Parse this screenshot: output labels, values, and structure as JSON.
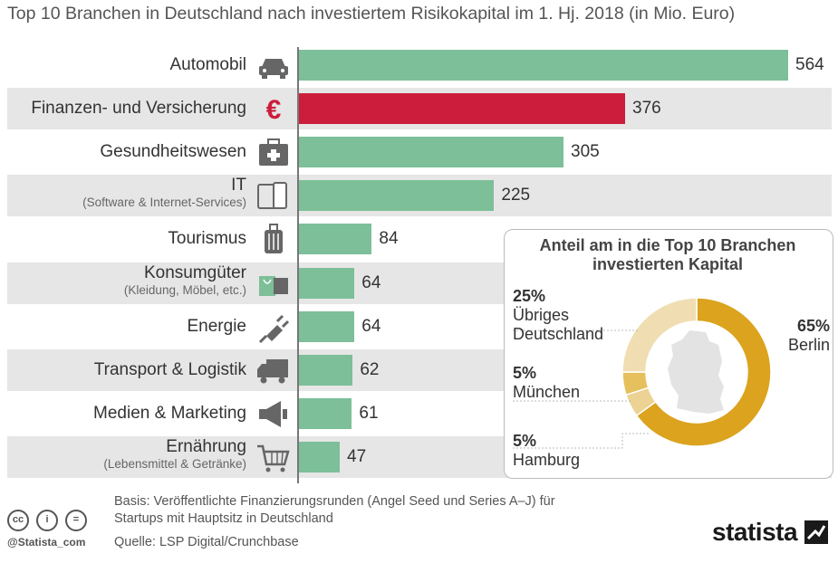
{
  "title": "Top 10 Branchen in Deutschland nach investiertem Risikokapital im 1. Hj. 2018 (in Mio. Euro)",
  "colors": {
    "bar": "#7dbf98",
    "highlight": "#cc1e3c",
    "donut_berlin": "#dba31e",
    "donut_muenchen": "#e6c05c",
    "donut_hamburg": "#ecd293",
    "donut_rest": "#f0deb2"
  },
  "chart_data": [
    {
      "type": "bar",
      "orientation": "horizontal",
      "categories": [
        "Automobil",
        "Finanzen- und Versicherung",
        "Gesundheitswesen",
        "IT",
        "Tourismus",
        "Konsumgüter",
        "Energie",
        "Transport & Logistik",
        "Medien & Marketing",
        "Ernährung"
      ],
      "subcategories": [
        "",
        "",
        "",
        "(Software & Internet-Services)",
        "",
        "(Kleidung, Möbel, etc.)",
        "",
        "",
        "",
        "(Lebensmittel & Getränke)"
      ],
      "icons": [
        "car-icon",
        "euro-icon",
        "first-aid-kit-icon",
        "devices-icon",
        "suitcase-icon",
        "shopping-bag-icon",
        "plug-icon",
        "truck-icon",
        "megaphone-icon",
        "shopping-cart-icon"
      ],
      "values": [
        564,
        376,
        305,
        225,
        84,
        64,
        64,
        62,
        61,
        47
      ],
      "highlight_index": 1,
      "xlim": [
        0,
        564
      ]
    },
    {
      "type": "pie",
      "style": "donut",
      "title": "Anteil am in die Top 10 Branchen investierten Kapital",
      "slices": [
        {
          "label": "Berlin",
          "pct_label": "65%",
          "value": 65
        },
        {
          "label": "Hamburg",
          "pct_label": "5%",
          "value": 5
        },
        {
          "label": "München",
          "pct_label": "5%",
          "value": 5
        },
        {
          "label": "Übriges Deutschland",
          "pct_label": "25%",
          "value": 25
        }
      ],
      "center_icon": "germany-map-icon"
    }
  ],
  "footer": {
    "basis_line1": "Basis: Veröffentlichte Finanzierungsrunden (Angel Seed und Series A–J) für",
    "basis_line2": "Startups mit Hauptsitz in Deutschland",
    "source": "Quelle: LSP Digital/Crunchbase",
    "handle": "@Statista_com",
    "brand": "statista",
    "cc_labels": [
      "cc",
      "i",
      "="
    ]
  }
}
